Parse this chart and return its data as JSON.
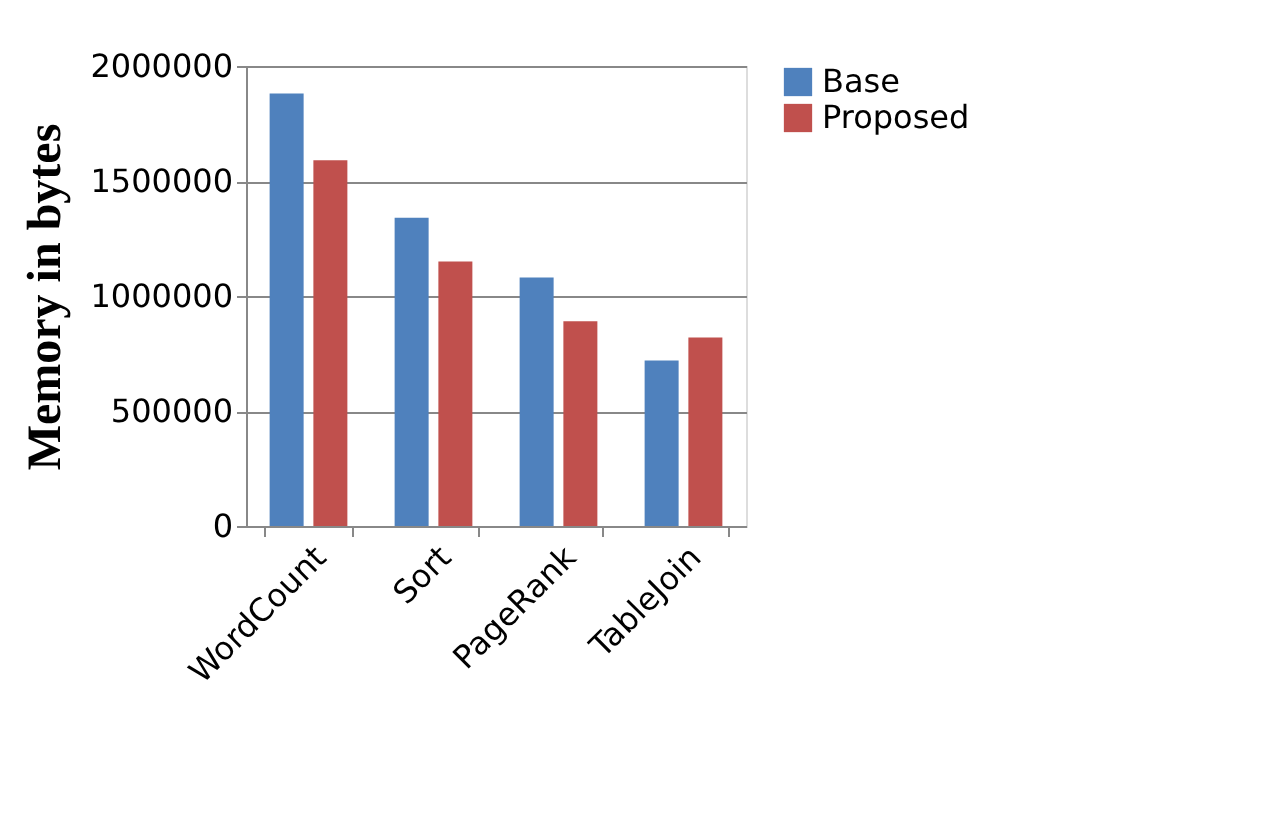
{
  "chart_data": {
    "type": "bar",
    "ylabel": "Memory in bytes",
    "categories": [
      "WordCount",
      "Sort",
      "PageRank",
      "TableJoin"
    ],
    "series": [
      {
        "name": "Base",
        "color": "#4f81bd",
        "values": [
          1880000,
          1340000,
          1080000,
          720000
        ]
      },
      {
        "name": "Proposed",
        "color": "#c0504d",
        "values": [
          1590000,
          1150000,
          890000,
          820000
        ]
      }
    ],
    "ylim": [
      0,
      2000000
    ],
    "yticks": [
      0,
      500000,
      1000000,
      1500000,
      2000000
    ],
    "grid": "y",
    "legend": "right"
  }
}
